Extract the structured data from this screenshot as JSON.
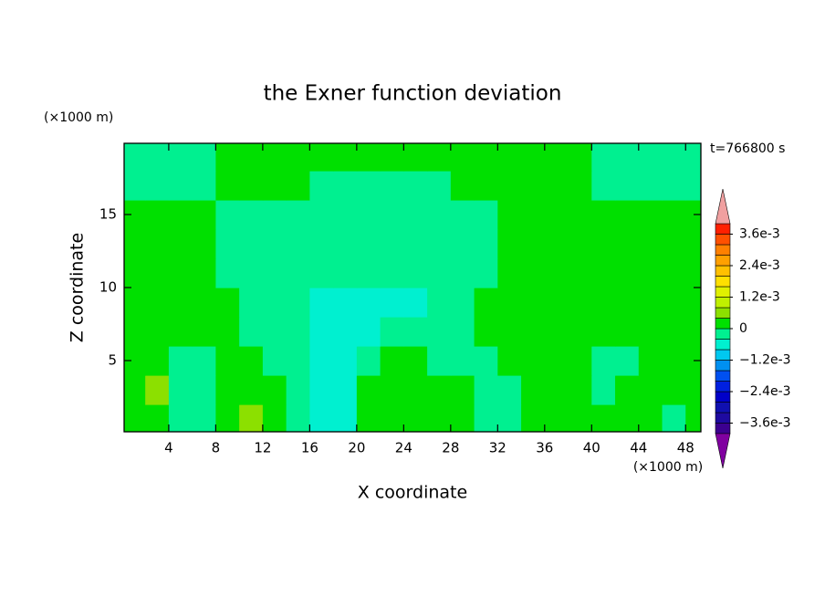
{
  "chart_data": {
    "type": "contour",
    "title": "the Exner function deviation",
    "x_label": "X coordinate",
    "y_label": "Z coordinate",
    "x_units": "(×1000 m)",
    "y_units": "(×1000 m)",
    "annotation": "t=766800 s",
    "xlim": [
      0.2,
      49.3
    ],
    "ylim": [
      0.125,
      19.875
    ],
    "xticks": [
      4,
      8,
      12,
      16,
      20,
      24,
      28,
      32,
      36,
      40,
      44,
      48
    ],
    "yticks": [
      5,
      10,
      15
    ],
    "x": [
      1,
      3,
      5,
      7,
      9,
      11,
      13,
      15,
      17,
      19,
      21,
      23,
      25,
      27,
      29,
      31,
      33,
      35,
      37,
      39,
      41,
      43,
      45,
      47,
      49
    ],
    "y": [
      1,
      3,
      5,
      7,
      9,
      11,
      13,
      15,
      17,
      19
    ],
    "z": [
      [
        0.0002,
        0.0002,
        -0.0002,
        -0.0002,
        0.0002,
        0.0006,
        0.0002,
        -0.0002,
        -0.0006,
        -0.0006,
        0.0002,
        0.0002,
        0.0002,
        0.0002,
        0.0002,
        -0.0002,
        -0.0002,
        0.0002,
        0.0002,
        0.0002,
        0.0002,
        0.0002,
        0.0002,
        -0.0002,
        0.0002
      ],
      [
        0.0002,
        0.0006,
        -0.0002,
        -0.0002,
        0.0002,
        0.0002,
        0.0002,
        -0.0002,
        -0.0006,
        -0.0006,
        0.0002,
        0.0002,
        0.0002,
        0.0002,
        0.0002,
        -0.0002,
        -0.0002,
        0.0002,
        0.0002,
        0.0002,
        -0.0002,
        0.0002,
        0.0002,
        0.0002,
        0.0002
      ],
      [
        0.0002,
        0.0002,
        -0.0002,
        -0.0002,
        0.0002,
        0.0002,
        -0.0002,
        -0.0002,
        -0.0006,
        -0.0006,
        -0.0002,
        0.0002,
        0.0002,
        -0.0002,
        -0.0002,
        -0.0002,
        0.0002,
        0.0002,
        0.0002,
        0.0002,
        -0.0002,
        -0.0002,
        0.0002,
        0.0002,
        0.0002
      ],
      [
        0.0002,
        0.0002,
        0.0002,
        0.0002,
        0.0002,
        -0.0002,
        -0.0002,
        -0.0002,
        -0.0006,
        -0.0006,
        -0.0006,
        -0.0002,
        -0.0002,
        -0.0002,
        -0.0002,
        0.0002,
        0.0002,
        0.0002,
        0.0002,
        0.0002,
        0.0002,
        0.0002,
        0.0002,
        0.0002,
        0.0002
      ],
      [
        0.0002,
        0.0002,
        0.0002,
        0.0002,
        0.0002,
        -0.0002,
        -0.0002,
        -0.0002,
        -0.0006,
        -0.0006,
        -0.0006,
        -0.0006,
        -0.0006,
        -0.0002,
        -0.0002,
        0.0002,
        0.0002,
        0.0002,
        0.0002,
        0.0002,
        0.0002,
        0.0002,
        0.0002,
        0.0002,
        0.0002
      ],
      [
        0.0002,
        0.0002,
        0.0002,
        0.0002,
        -0.0002,
        -0.0002,
        -0.0002,
        -0.0002,
        -0.0002,
        -0.0002,
        -0.0002,
        -0.0002,
        -0.0002,
        -0.0002,
        -0.0002,
        -0.0002,
        0.0002,
        0.0002,
        0.0002,
        0.0002,
        0.0002,
        0.0002,
        0.0002,
        0.0002,
        0.0002
      ],
      [
        0.0002,
        0.0002,
        0.0002,
        0.0002,
        -0.0002,
        -0.0002,
        -0.0002,
        -0.0002,
        -0.0002,
        -0.0002,
        -0.0002,
        -0.0002,
        -0.0002,
        -0.0002,
        -0.0002,
        -0.0002,
        0.0002,
        0.0002,
        0.0002,
        0.0002,
        0.0002,
        0.0002,
        0.0002,
        0.0002,
        0.0002
      ],
      [
        0.0002,
        0.0002,
        0.0002,
        0.0002,
        -0.0002,
        -0.0002,
        -0.0002,
        -0.0002,
        -0.0002,
        -0.0002,
        -0.0002,
        -0.0002,
        -0.0002,
        -0.0002,
        -0.0002,
        -0.0002,
        0.0002,
        0.0002,
        0.0002,
        0.0002,
        0.0002,
        0.0002,
        0.0002,
        0.0002,
        0.0002
      ],
      [
        -0.0002,
        -0.0002,
        -0.0002,
        -0.0002,
        0.0002,
        0.0002,
        0.0002,
        0.0002,
        -0.0002,
        -0.0002,
        -0.0002,
        -0.0002,
        -0.0002,
        -0.0002,
        0.0002,
        0.0002,
        0.0002,
        0.0002,
        0.0002,
        0.0002,
        -0.0002,
        -0.0002,
        -0.0002,
        -0.0002,
        -0.0002
      ],
      [
        -0.0002,
        -0.0002,
        -0.0002,
        -0.0002,
        0.0002,
        0.0002,
        0.0002,
        0.0002,
        0.0002,
        0.0002,
        0.0002,
        0.0002,
        0.0002,
        0.0002,
        0.0002,
        0.0002,
        0.0002,
        0.0002,
        0.0002,
        0.0002,
        -0.0002,
        -0.0002,
        -0.0002,
        -0.0002,
        -0.0002
      ]
    ],
    "levels": [
      -0.004,
      -0.0036,
      -0.0032,
      -0.0028,
      -0.0024,
      -0.002,
      -0.0016,
      -0.0012,
      -0.0008,
      -0.0004,
      0,
      0.0004,
      0.0008,
      0.0012,
      0.0016,
      0.002,
      0.0024,
      0.0028,
      0.0032,
      0.0036,
      0.004
    ],
    "colors": [
      "#3c0090",
      "#1e0aa0",
      "#1010b0",
      "#0000c8",
      "#0020e0",
      "#0050f0",
      "#0090f0",
      "#00c8f0",
      "#00f0d0",
      "#00f090",
      "#00e000",
      "#8ce000",
      "#c0f000",
      "#e0f000",
      "#ffe000",
      "#ffc000",
      "#ffa000",
      "#ff8000",
      "#ff5000",
      "#ff2000"
    ],
    "under_color": "#8000a0",
    "over_color": "#f0a0a0",
    "cbticks": [
      {
        "value": 0.0036,
        "label": "3.6e-3"
      },
      {
        "value": 0.0024,
        "label": "2.4e-3"
      },
      {
        "value": 0.0012,
        "label": "1.2e-3"
      },
      0,
      {
        "value": -0.0012,
        "label": "−1.2e-3"
      },
      {
        "value": -0.0024,
        "label": "−2.4e-3"
      },
      {
        "value": -0.0036,
        "label": "−3.6e-3"
      }
    ]
  }
}
